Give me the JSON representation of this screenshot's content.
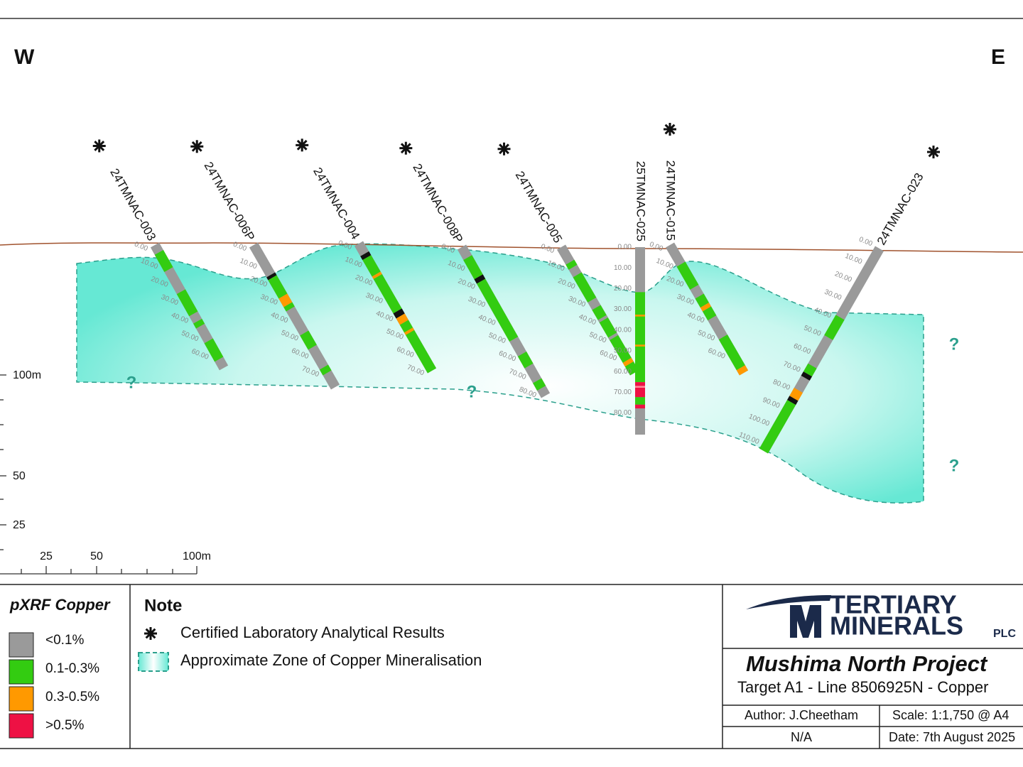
{
  "compass": {
    "west": "W",
    "east": "E"
  },
  "holes": [
    {
      "name": "24TMNAC-003",
      "certified": true,
      "depths": [
        "0.00",
        "10.00",
        "20.00",
        "30.00",
        "40.00",
        "50.00",
        "60.00"
      ]
    },
    {
      "name": "24TMNAC-006P",
      "certified": true,
      "depths": [
        "0.00",
        "10.00",
        "20.00",
        "30.00",
        "40.00",
        "50.00",
        "60.00",
        "70.00"
      ]
    },
    {
      "name": "24TMNAC-004",
      "certified": true,
      "depths": [
        "0.00",
        "10.00",
        "20.00",
        "30.00",
        "40.00",
        "50.00",
        "60.00",
        "70.00"
      ]
    },
    {
      "name": "24TMNAC-008P",
      "certified": true,
      "depths": [
        "0.00",
        "10.00",
        "20.00",
        "30.00",
        "40.00",
        "50.00",
        "60.00",
        "70.00",
        "80.00"
      ]
    },
    {
      "name": "24TMNAC-005",
      "certified": true,
      "depths": [
        "0.00",
        "10.00",
        "20.00",
        "30.00",
        "40.00",
        "50.00",
        "60.00"
      ]
    },
    {
      "name": "25TMNAC-025",
      "certified": false,
      "depths": [
        "0.00",
        "10.00",
        "20.00",
        "30.00",
        "40.00",
        "50.00",
        "60.00",
        "70.00",
        "80.00"
      ]
    },
    {
      "name": "24TMNAC-015",
      "certified": true,
      "depths": [
        "0.00",
        "10.00",
        "20.00",
        "30.00",
        "40.00",
        "50.00",
        "60.00"
      ]
    },
    {
      "name": "24TMNAC-023",
      "certified": true,
      "depths": [
        "0.00",
        "10.00",
        "20.00",
        "30.00",
        "40.00",
        "50.00",
        "60.00",
        "70.00",
        "80.00",
        "90.00",
        "100.00",
        "110.00"
      ]
    }
  ],
  "zone_markers": [
    "?",
    "?",
    "?",
    "?"
  ],
  "vertical_scale": [
    "100m",
    "50",
    "25"
  ],
  "horizontal_scale": [
    "25",
    "50",
    "100m"
  ],
  "legend": {
    "title": "pXRF Copper",
    "items": [
      "<0.1%",
      "0.1-0.3%",
      "0.3-0.5%",
      ">0.5%"
    ]
  },
  "note": {
    "title": "Note",
    "items": [
      "Certified Laboratory Analytical Results",
      "Approximate Zone of Copper Mineralisation"
    ]
  },
  "title_block": {
    "logo": {
      "line1": "TERTIARY",
      "line2": "MINERALS",
      "suffix": "PLC"
    },
    "project": "Mushima North Project",
    "subtitle": "Target A1 - Line 8506925N - Copper",
    "author": "Author: J.Cheetham",
    "scale": "Scale: 1:1,750 @ A4",
    "reference": "N/A",
    "date": "Date: 7th August 2025"
  }
}
